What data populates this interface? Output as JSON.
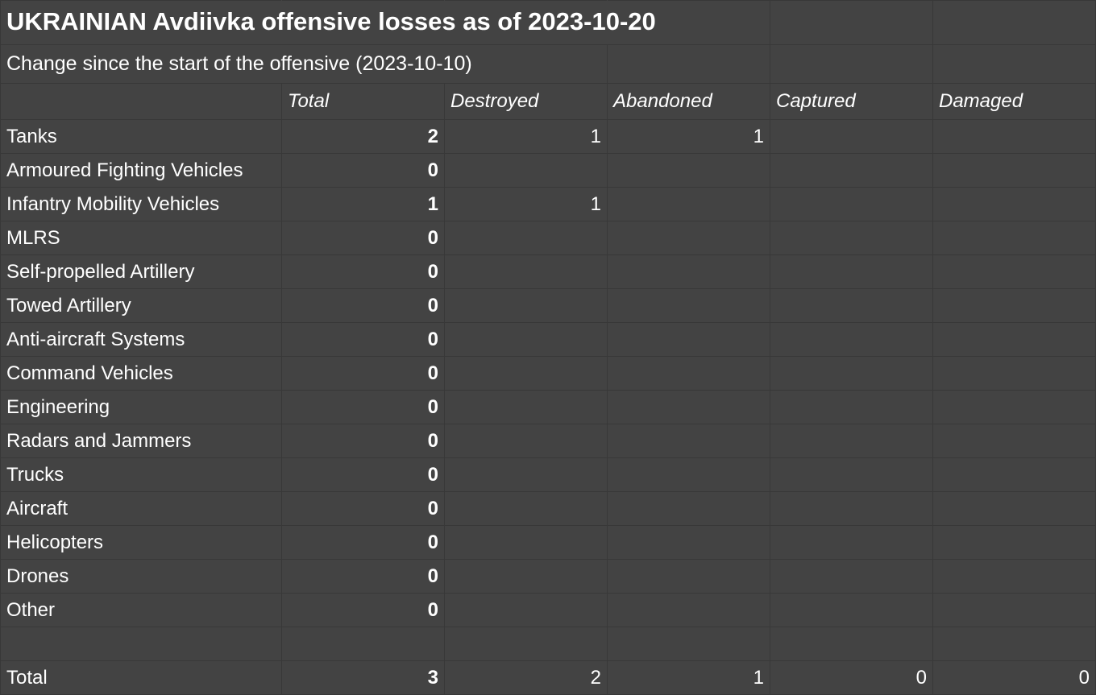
{
  "title": "UKRAINIAN Avdiivka offensive losses as of 2023-10-20",
  "subtitle": "Change since the start of the offensive (2023-10-10)",
  "columns": [
    "Total",
    "Destroyed",
    "Abandoned",
    "Captured",
    "Damaged"
  ],
  "rows": [
    {
      "category": "Tanks",
      "total": "2",
      "destroyed": "1",
      "abandoned": "1",
      "captured": "",
      "damaged": ""
    },
    {
      "category": "Armoured Fighting Vehicles",
      "total": "0",
      "destroyed": "",
      "abandoned": "",
      "captured": "",
      "damaged": ""
    },
    {
      "category": "Infantry Mobility Vehicles",
      "total": "1",
      "destroyed": "1",
      "abandoned": "",
      "captured": "",
      "damaged": ""
    },
    {
      "category": "MLRS",
      "total": "0",
      "destroyed": "",
      "abandoned": "",
      "captured": "",
      "damaged": ""
    },
    {
      "category": "Self-propelled Artillery",
      "total": "0",
      "destroyed": "",
      "abandoned": "",
      "captured": "",
      "damaged": ""
    },
    {
      "category": "Towed Artillery",
      "total": "0",
      "destroyed": "",
      "abandoned": "",
      "captured": "",
      "damaged": ""
    },
    {
      "category": "Anti-aircraft Systems",
      "total": "0",
      "destroyed": "",
      "abandoned": "",
      "captured": "",
      "damaged": ""
    },
    {
      "category": "Command Vehicles",
      "total": "0",
      "destroyed": "",
      "abandoned": "",
      "captured": "",
      "damaged": ""
    },
    {
      "category": "Engineering",
      "total": "0",
      "destroyed": "",
      "abandoned": "",
      "captured": "",
      "damaged": ""
    },
    {
      "category": "Radars and Jammers",
      "total": "0",
      "destroyed": "",
      "abandoned": "",
      "captured": "",
      "damaged": ""
    },
    {
      "category": "Trucks",
      "total": "0",
      "destroyed": "",
      "abandoned": "",
      "captured": "",
      "damaged": ""
    },
    {
      "category": "Aircraft",
      "total": "0",
      "destroyed": "",
      "abandoned": "",
      "captured": "",
      "damaged": ""
    },
    {
      "category": "Helicopters",
      "total": "0",
      "destroyed": "",
      "abandoned": "",
      "captured": "",
      "damaged": ""
    },
    {
      "category": "Drones",
      "total": "0",
      "destroyed": "",
      "abandoned": "",
      "captured": "",
      "damaged": ""
    },
    {
      "category": "Other",
      "total": "0",
      "destroyed": "",
      "abandoned": "",
      "captured": "",
      "damaged": ""
    }
  ],
  "totals": {
    "label": "Total",
    "total": "3",
    "destroyed": "2",
    "abandoned": "1",
    "captured": "0",
    "damaged": "0"
  },
  "colors": {
    "background": "#434343",
    "gridline": "#383838",
    "text": "#ffffff"
  }
}
